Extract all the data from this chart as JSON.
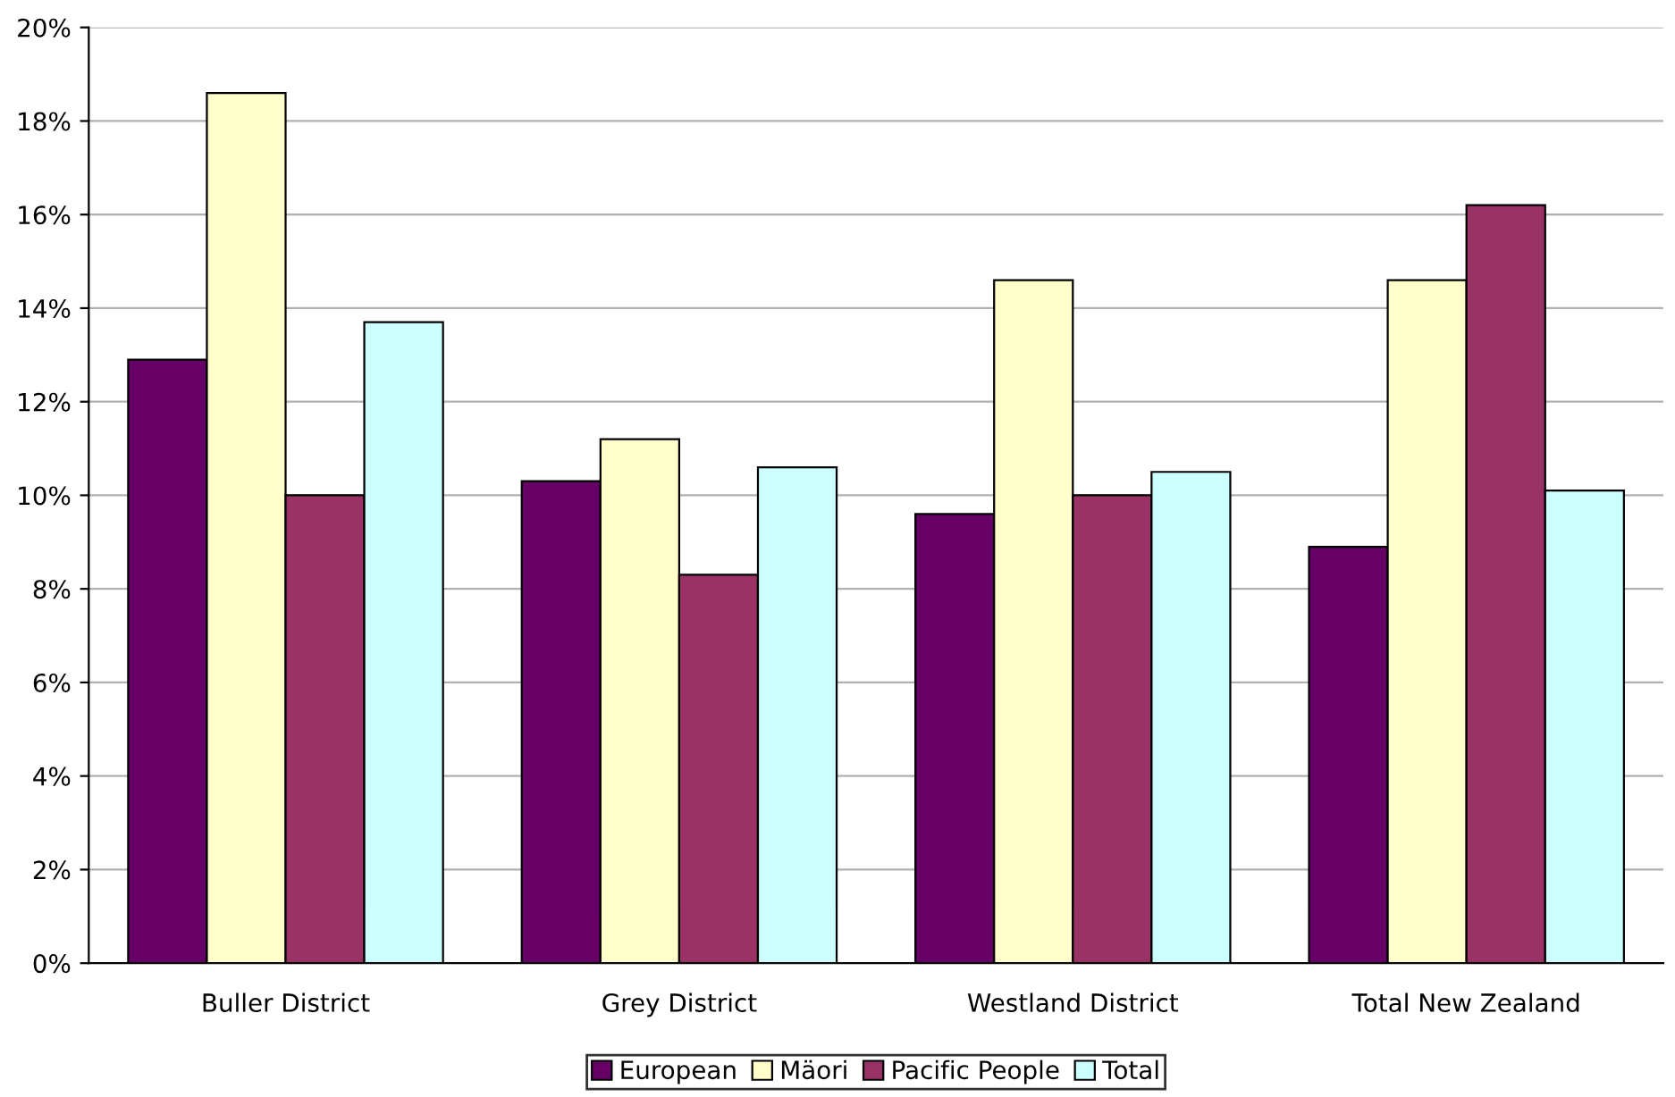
{
  "chart_data": {
    "type": "bar",
    "categories": [
      "Buller District",
      "Grey District",
      "Westland District",
      "Total New Zealand"
    ],
    "series": [
      {
        "name": "European",
        "color": "#660066",
        "values": [
          12.9,
          10.3,
          9.6,
          8.9
        ]
      },
      {
        "name": "Mäori",
        "color": "#ffffcc",
        "values": [
          18.6,
          11.2,
          14.6,
          14.6
        ]
      },
      {
        "name": "Pacific People",
        "color": "#993366",
        "values": [
          10.0,
          8.3,
          10.0,
          16.2
        ]
      },
      {
        "name": "Total",
        "color": "#ccffff",
        "values": [
          13.7,
          10.6,
          10.5,
          10.1
        ]
      }
    ],
    "ylim": [
      0,
      20
    ],
    "yticks": [
      {
        "value": 0,
        "label": "0%"
      },
      {
        "value": 2,
        "label": "2%"
      },
      {
        "value": 4,
        "label": "4%"
      },
      {
        "value": 6,
        "label": "6%"
      },
      {
        "value": 8,
        "label": "8%"
      },
      {
        "value": 10,
        "label": "10%"
      },
      {
        "value": 12,
        "label": "12%"
      },
      {
        "value": 14,
        "label": "14%"
      },
      {
        "value": 16,
        "label": "16%"
      },
      {
        "value": 18,
        "label": "18%"
      },
      {
        "value": 20,
        "label": "20%"
      }
    ],
    "grid": "y",
    "legend": "bottom"
  }
}
